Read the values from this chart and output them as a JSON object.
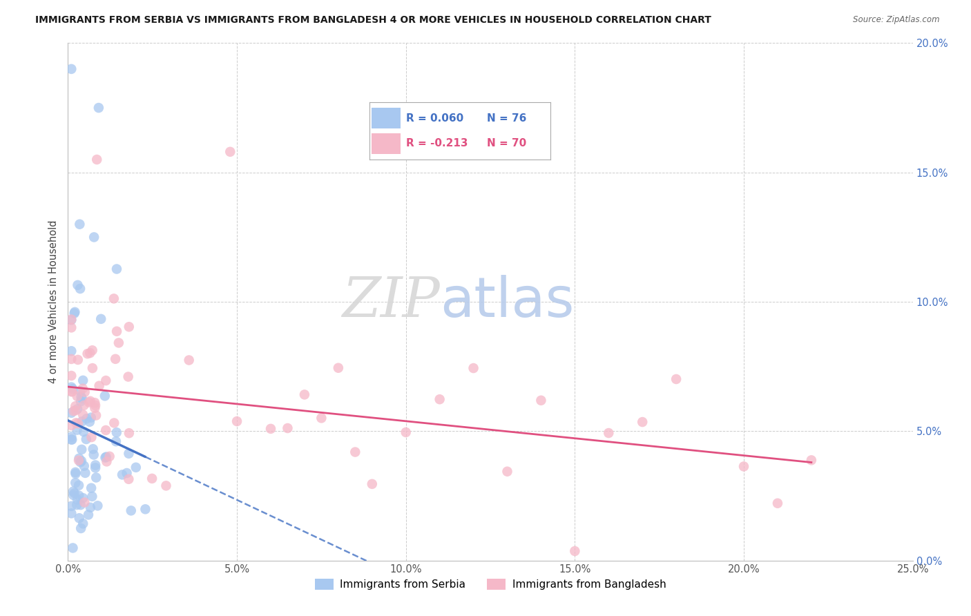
{
  "title": "IMMIGRANTS FROM SERBIA VS IMMIGRANTS FROM BANGLADESH 4 OR MORE VEHICLES IN HOUSEHOLD CORRELATION CHART",
  "source": "Source: ZipAtlas.com",
  "ylabel": "4 or more Vehicles in Household",
  "xlim": [
    0.0,
    0.25
  ],
  "ylim": [
    0.0,
    0.2
  ],
  "xticks": [
    0.0,
    0.05,
    0.1,
    0.15,
    0.2,
    0.25
  ],
  "yticks": [
    0.0,
    0.05,
    0.1,
    0.15,
    0.2
  ],
  "legend_r1": "R = 0.060",
  "legend_n1": "N = 76",
  "legend_r2": "R = -0.213",
  "legend_n2": "N = 70",
  "color_serbia": "#a8c8f0",
  "color_bangladesh": "#f5b8c8",
  "color_line_serbia": "#4472c4",
  "color_line_bangladesh": "#e05080",
  "watermark_zip": "ZIP",
  "watermark_atlas": "atlas",
  "background_color": "#ffffff",
  "grid_color": "#cccccc"
}
